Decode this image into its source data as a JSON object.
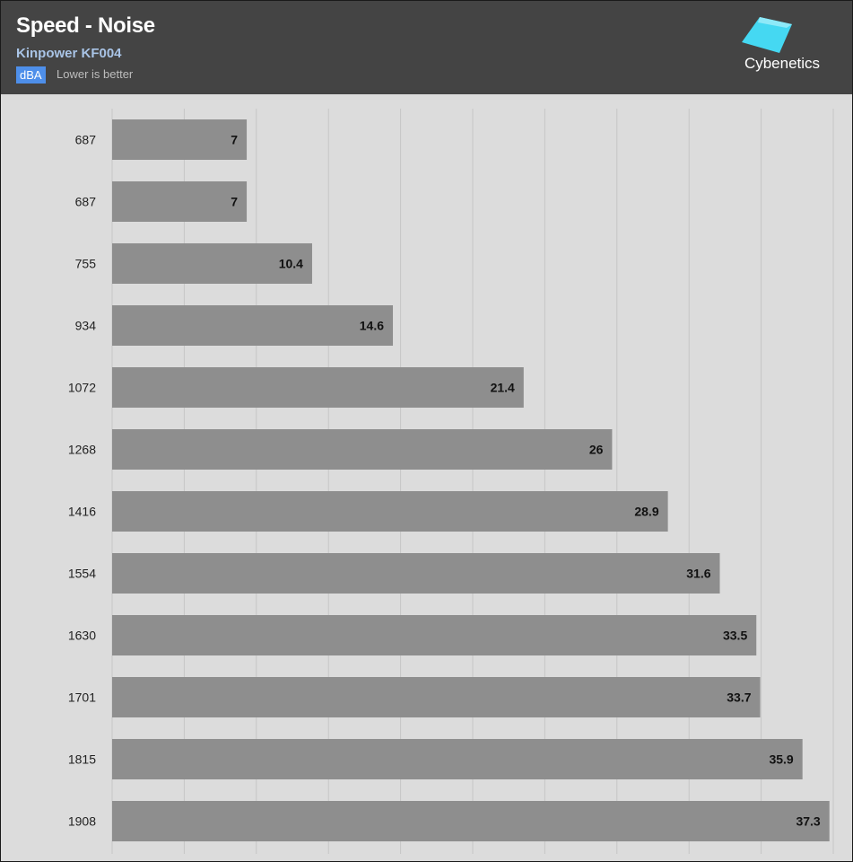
{
  "header": {
    "title": "Speed - Noise",
    "subtitle": "Kinpower KF004",
    "unit": "dBA",
    "note": "Lower is better",
    "logo_text": "Cybenetics"
  },
  "colors": {
    "header_bg": "#444444",
    "plot_bg": "#dcdcdc",
    "bar": "#8e8e8e",
    "badge": "#4e8fea",
    "subtitle": "#a9c4e6",
    "logo": "#45d8f2"
  },
  "chart_data": {
    "type": "bar",
    "orientation": "horizontal",
    "categories": [
      "687",
      "687",
      "755",
      "934",
      "1072",
      "1268",
      "1416",
      "1554",
      "1630",
      "1701",
      "1815",
      "1908"
    ],
    "values": [
      7,
      7,
      10.4,
      14.6,
      21.4,
      26,
      28.9,
      31.6,
      33.5,
      33.7,
      35.9,
      37.3
    ],
    "xlim": [
      0,
      37.5
    ],
    "grid": true,
    "legend": "none"
  }
}
